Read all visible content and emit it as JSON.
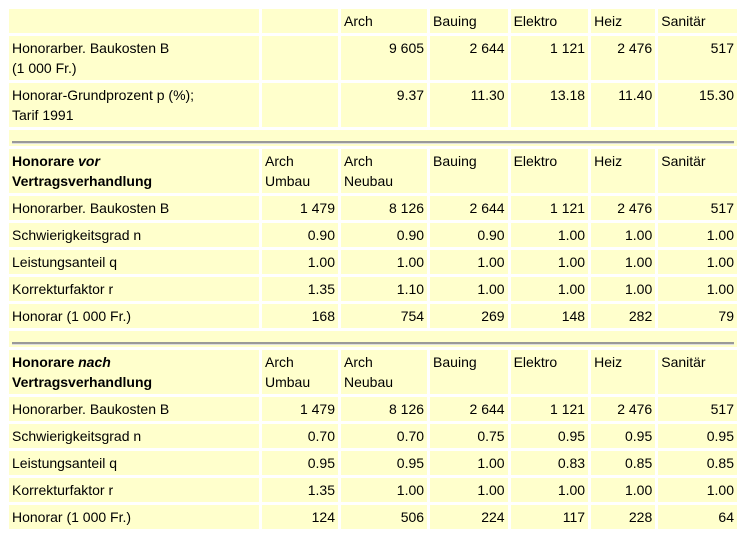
{
  "top": {
    "headers": [
      "",
      "",
      "Arch",
      "Bauing",
      "Elektro",
      "Heiz",
      "Sanitär"
    ],
    "rows": [
      {
        "label": "Honorarber. Baukosten B",
        "label2": "(1 000 Fr.)",
        "values": [
          "",
          "9 605",
          "2 644",
          "1 121",
          "2 476",
          "517"
        ]
      },
      {
        "label": "Honorar-Grundprozent p (%);",
        "label2": "Tarif 1991",
        "values": [
          "",
          "9.37",
          "11.30",
          "13.18",
          "11.40",
          "15.30"
        ]
      }
    ]
  },
  "vor": {
    "title_a": "Honorare ",
    "title_em": "vor",
    "title_b": "Vertragsverhandlung",
    "headers": [
      [
        "Arch",
        "Umbau"
      ],
      [
        "Arch",
        "Neubau"
      ],
      [
        "Bauing",
        ""
      ],
      [
        "Elektro",
        ""
      ],
      [
        "Heiz",
        ""
      ],
      [
        "Sanitär",
        ""
      ]
    ],
    "rows": [
      {
        "label": "Honorarber. Baukosten B",
        "values": [
          "1 479",
          "8 126",
          "2 644",
          "1 121",
          "2 476",
          "517"
        ]
      },
      {
        "label": "Schwierigkeitsgrad n",
        "values": [
          "0.90",
          "0.90",
          "0.90",
          "1.00",
          "1.00",
          "1.00"
        ]
      },
      {
        "label": "Leistungsanteil q",
        "values": [
          "1.00",
          "1.00",
          "1.00",
          "1.00",
          "1.00",
          "1.00"
        ]
      },
      {
        "label": "Korrekturfaktor r",
        "values": [
          "1.35",
          "1.10",
          "1.00",
          "1.00",
          "1.00",
          "1.00"
        ]
      },
      {
        "label": "Honorar (1 000 Fr.)",
        "values": [
          "168",
          "754",
          "269",
          "148",
          "282",
          "79"
        ]
      }
    ]
  },
  "nach": {
    "title_a": "Honorare ",
    "title_em": "nach",
    "title_b": "Vertragsverhandlung",
    "headers": [
      [
        "Arch",
        "Umbau"
      ],
      [
        "Arch",
        "Neubau"
      ],
      [
        "Bauing",
        ""
      ],
      [
        "Elektro",
        ""
      ],
      [
        "Heiz",
        ""
      ],
      [
        "Sanitär",
        ""
      ]
    ],
    "rows": [
      {
        "label": "Honorarber. Baukosten B",
        "values": [
          "1 479",
          "8 126",
          "2 644",
          "1 121",
          "2 476",
          "517"
        ]
      },
      {
        "label": "Schwierigkeitsgrad n",
        "values": [
          "0.70",
          "0.70",
          "0.75",
          "0.95",
          "0.95",
          "0.95"
        ]
      },
      {
        "label": "Leistungsanteil q",
        "values": [
          "0.95",
          "0.95",
          "1.00",
          "0.83",
          "0.85",
          "0.85"
        ]
      },
      {
        "label": "Korrekturfaktor r",
        "values": [
          "1.35",
          "1.00",
          "1.00",
          "1.00",
          "1.00",
          "1.00"
        ]
      },
      {
        "label": "Honorar (1 000 Fr.)",
        "values": [
          "124",
          "506",
          "224",
          "117",
          "228",
          "64"
        ]
      }
    ]
  }
}
